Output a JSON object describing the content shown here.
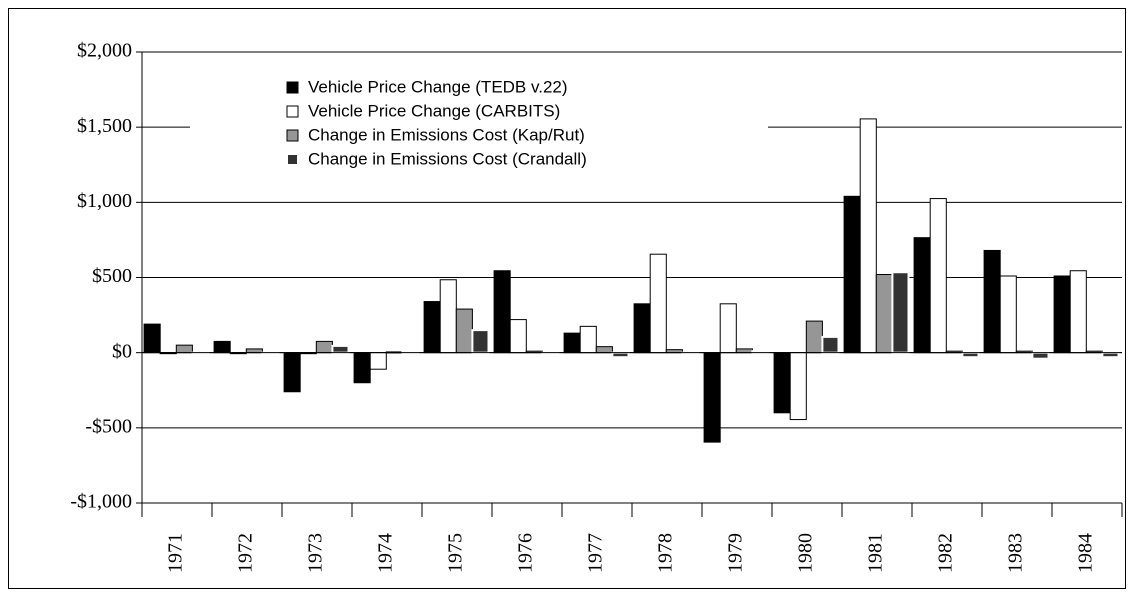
{
  "chart_data": {
    "type": "bar",
    "categories": [
      "1971",
      "1972",
      "1973",
      "1974",
      "1975",
      "1976",
      "1977",
      "1978",
      "1979",
      "1980",
      "1981",
      "1982",
      "1983",
      "1984"
    ],
    "series": [
      {
        "name": "Vehicle Price Change (TEDB v.22)",
        "color": "#000000",
        "values": [
          190,
          75,
          -260,
          -200,
          340,
          545,
          130,
          325,
          -595,
          -400,
          1040,
          765,
          680,
          510
        ]
      },
      {
        "name": "Vehicle Price Change (CARBITS)",
        "color": "#ffffff",
        "values": [
          0,
          0,
          0,
          -110,
          485,
          220,
          175,
          655,
          325,
          -445,
          1555,
          1025,
          510,
          545
        ]
      },
      {
        "name": "Change in Emissions Cost (Kap/Rut)",
        "color": "#969696",
        "values": [
          50,
          25,
          75,
          5,
          290,
          10,
          40,
          20,
          25,
          210,
          520,
          10,
          10,
          10
        ]
      },
      {
        "name": "Change in Emissions Cost (Crandall)",
        "color": "#333333",
        "values": [
          0,
          0,
          45,
          5,
          150,
          0,
          -30,
          0,
          10,
          105,
          535,
          -30,
          -40,
          -30
        ]
      }
    ],
    "ylim": [
      -1000,
      2000
    ],
    "yticks": [
      {
        "value": -1000,
        "label": "-$1,000"
      },
      {
        "value": -500,
        "label": "-$500"
      },
      {
        "value": 0,
        "label": "$0"
      },
      {
        "value": 500,
        "label": "$500"
      },
      {
        "value": 1000,
        "label": "$1,000"
      },
      {
        "value": 1500,
        "label": "$1,500"
      },
      {
        "value": 2000,
        "label": "$2,000"
      }
    ],
    "grid": true
  }
}
